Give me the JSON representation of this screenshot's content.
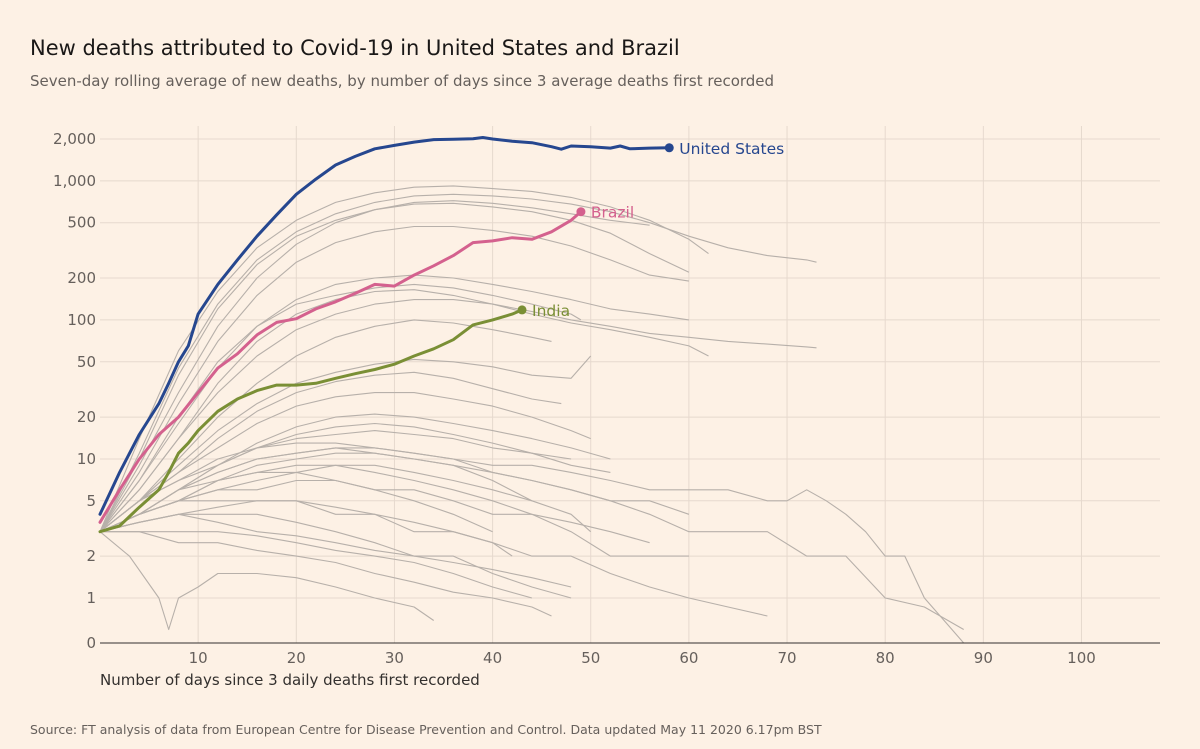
{
  "title": "New deaths attributed to Covid-19 in United States and Brazil",
  "subtitle": "Seven-day rolling average of new deaths, by number of days since 3 average deaths first recorded",
  "source": "Source: FT analysis of data from European Centre for Disease Prevention and Control. Data updated May 11 2020 6.17pm BST",
  "colors": {
    "background": "#fdf1e5",
    "grid": "#e6d9ce",
    "axis": "#66605c",
    "context": "#b7b0aa",
    "united_states": "#26478f",
    "brazil": "#d4618e",
    "india": "#7a8f35"
  },
  "chart_data": {
    "type": "line",
    "xlabel": "Number of days since 3 daily deaths first recorded",
    "ylabel": "",
    "y_scale": "log",
    "xlim": [
      0,
      108
    ],
    "x_ticks": [
      10,
      20,
      30,
      40,
      50,
      60,
      70,
      80,
      90,
      100
    ],
    "y_ticks": [
      {
        "value": 0,
        "label": "0"
      },
      {
        "value": 1,
        "label": "1"
      },
      {
        "value": 2,
        "label": "2"
      },
      {
        "value": 5,
        "label": "5"
      },
      {
        "value": 10,
        "label": "10"
      },
      {
        "value": 20,
        "label": "20"
      },
      {
        "value": 50,
        "label": "50"
      },
      {
        "value": 100,
        "label": "100"
      },
      {
        "value": 200,
        "label": "200"
      },
      {
        "value": 500,
        "label": "500"
      },
      {
        "value": 1000,
        "label": "1,000"
      },
      {
        "value": 2000,
        "label": "2,000"
      }
    ],
    "grid": true,
    "highlighted_series": [
      {
        "name": "United States",
        "label": "United States",
        "color_key": "united_states",
        "x": [
          0,
          2,
          4,
          6,
          7,
          8,
          9,
          10,
          12,
          14,
          16,
          18,
          20,
          22,
          24,
          26,
          28,
          30,
          32,
          34,
          36,
          38,
          39,
          40,
          42,
          44,
          46,
          47,
          48,
          50,
          52,
          53,
          54,
          56,
          58
        ],
        "y": [
          4,
          8,
          15,
          25,
          35,
          50,
          65,
          110,
          180,
          270,
          400,
          570,
          800,
          1030,
          1300,
          1500,
          1700,
          1800,
          1900,
          1980,
          1990,
          2010,
          2050,
          2000,
          1930,
          1880,
          1760,
          1690,
          1780,
          1760,
          1720,
          1780,
          1700,
          1720,
          1730
        ]
      },
      {
        "name": "Brazil",
        "label": "Brazil",
        "color_key": "brazil",
        "x": [
          0,
          2,
          4,
          6,
          8,
          10,
          12,
          14,
          16,
          18,
          20,
          22,
          24,
          26,
          28,
          30,
          32,
          34,
          36,
          38,
          40,
          42,
          44,
          46,
          48,
          49
        ],
        "y": [
          3.5,
          6,
          10,
          15,
          20,
          30,
          45,
          57,
          78,
          96,
          102,
          120,
          135,
          155,
          180,
          175,
          210,
          245,
          290,
          360,
          370,
          390,
          380,
          430,
          520,
          600
        ]
      },
      {
        "name": "India",
        "label": "India",
        "color_key": "india",
        "x": [
          0,
          2,
          4,
          6,
          7,
          8,
          9,
          10,
          12,
          14,
          16,
          18,
          20,
          22,
          24,
          26,
          28,
          30,
          32,
          34,
          36,
          38,
          40,
          42,
          43
        ],
        "y": [
          3,
          3.3,
          4.5,
          6,
          8,
          11,
          13,
          16,
          22,
          27,
          31,
          34,
          34,
          35,
          38,
          41,
          44,
          48,
          55,
          62,
          72,
          92,
          100,
          110,
          118
        ]
      }
    ],
    "context_series": [
      {
        "x": [
          0,
          4,
          8,
          12,
          16,
          20,
          24,
          28,
          32,
          36,
          40,
          44,
          48,
          52,
          56,
          60,
          62
        ],
        "y": [
          3,
          14,
          60,
          160,
          330,
          520,
          700,
          820,
          900,
          920,
          880,
          840,
          760,
          650,
          520,
          380,
          300
        ]
      },
      {
        "x": [
          0,
          4,
          8,
          12,
          16,
          20,
          24,
          28,
          32,
          36,
          40,
          44,
          48,
          52,
          56,
          60,
          64,
          68,
          72,
          73
        ],
        "y": [
          3,
          11,
          45,
          130,
          270,
          430,
          580,
          700,
          780,
          800,
          780,
          740,
          680,
          600,
          500,
          400,
          330,
          290,
          270,
          260
        ]
      },
      {
        "x": [
          0,
          4,
          8,
          12,
          16,
          20,
          24,
          28,
          32,
          36,
          40,
          44,
          48,
          52,
          56
        ],
        "y": [
          3,
          9,
          30,
          90,
          200,
          350,
          500,
          620,
          700,
          720,
          690,
          640,
          580,
          520,
          480
        ]
      },
      {
        "x": [
          0,
          4,
          8,
          12,
          16,
          20,
          24,
          28,
          32,
          36,
          40,
          44,
          48,
          52,
          56,
          60
        ],
        "y": [
          3,
          10,
          40,
          120,
          250,
          400,
          520,
          620,
          680,
          690,
          650,
          600,
          520,
          420,
          300,
          220
        ]
      },
      {
        "x": [
          0,
          4,
          8,
          12,
          16,
          20,
          24,
          28,
          32,
          36,
          40,
          44,
          48,
          52,
          56,
          60
        ],
        "y": [
          3,
          8,
          25,
          70,
          150,
          260,
          360,
          430,
          470,
          470,
          440,
          400,
          340,
          270,
          210,
          190
        ]
      },
      {
        "x": [
          0,
          4,
          8,
          12,
          16,
          20,
          24,
          28,
          32,
          36,
          40,
          44,
          48,
          52,
          56,
          60
        ],
        "y": [
          3,
          7,
          18,
          45,
          90,
          140,
          180,
          200,
          210,
          200,
          180,
          160,
          140,
          120,
          110,
          100
        ]
      },
      {
        "x": [
          0,
          4,
          8,
          12,
          16,
          20,
          24,
          28,
          32,
          36,
          40,
          44,
          48,
          52,
          56,
          60,
          64,
          68,
          72,
          73
        ],
        "y": [
          3,
          6,
          14,
          30,
          55,
          85,
          110,
          130,
          140,
          140,
          130,
          115,
          100,
          90,
          80,
          75,
          70,
          67,
          64,
          63
        ]
      },
      {
        "x": [
          0,
          4,
          8,
          12,
          16,
          20,
          24,
          28,
          32,
          36,
          40,
          44,
          48,
          52,
          56,
          60,
          62
        ],
        "y": [
          3,
          6,
          14,
          35,
          70,
          110,
          140,
          160,
          165,
          150,
          130,
          110,
          95,
          85,
          75,
          65,
          55
        ]
      },
      {
        "x": [
          0,
          4,
          8,
          12,
          16,
          20,
          24,
          28,
          32,
          36,
          40,
          44,
          48,
          49
        ],
        "y": [
          3,
          7,
          20,
          50,
          90,
          130,
          150,
          170,
          180,
          170,
          150,
          130,
          110,
          100
        ]
      },
      {
        "x": [
          0,
          4,
          8,
          12,
          16,
          20,
          24,
          28,
          32,
          36,
          40,
          44,
          46
        ],
        "y": [
          3,
          5,
          10,
          20,
          35,
          55,
          75,
          90,
          100,
          95,
          85,
          75,
          70
        ]
      },
      {
        "x": [
          0,
          4,
          8,
          12,
          16,
          20,
          24,
          28,
          32,
          36,
          40,
          44,
          48,
          50
        ],
        "y": [
          3,
          5,
          9,
          16,
          25,
          35,
          42,
          48,
          52,
          50,
          46,
          40,
          38,
          55
        ]
      },
      {
        "x": [
          0,
          4,
          8,
          12,
          16,
          20,
          24,
          28,
          32,
          36,
          40,
          44,
          47
        ],
        "y": [
          3,
          5,
          8,
          14,
          22,
          30,
          36,
          40,
          42,
          38,
          32,
          27,
          25
        ]
      },
      {
        "x": [
          0,
          4,
          8,
          12,
          16,
          20,
          24,
          28,
          32,
          36,
          40,
          44,
          48,
          50
        ],
        "y": [
          3,
          5,
          8,
          12,
          18,
          24,
          28,
          30,
          30,
          27,
          24,
          20,
          16,
          14
        ]
      },
      {
        "x": [
          0,
          4,
          8,
          12,
          16,
          20,
          24,
          28,
          32,
          36,
          40,
          44,
          48,
          52
        ],
        "y": [
          3,
          4,
          6,
          9,
          12,
          15,
          17,
          18,
          17,
          15,
          13,
          11,
          9,
          8
        ]
      },
      {
        "x": [
          0,
          4,
          8,
          12,
          16,
          20,
          24,
          28,
          32,
          36,
          40,
          44,
          48,
          52,
          56,
          60,
          64,
          68,
          70,
          72,
          74,
          76,
          78,
          80,
          82,
          84,
          86,
          88,
          90
        ],
        "y": [
          3,
          4,
          6,
          8,
          10,
          11,
          12,
          12,
          11,
          10,
          9,
          9,
          8,
          7,
          6,
          6,
          6,
          5,
          5,
          6,
          5,
          4,
          3,
          2,
          2,
          1,
          0.5,
          0,
          0
        ]
      },
      {
        "x": [
          0,
          4,
          8,
          12,
          16,
          20,
          24,
          28,
          32,
          36,
          40,
          44,
          48,
          52,
          56,
          60,
          64,
          68,
          72,
          76,
          80,
          84,
          88
        ],
        "y": [
          3,
          4,
          5,
          7,
          9,
          10,
          11,
          11,
          10,
          9,
          8,
          7,
          6,
          5,
          4,
          3,
          3,
          3,
          2,
          2,
          1,
          0.8,
          0.3
        ]
      },
      {
        "x": [
          0,
          4,
          8,
          12,
          16,
          20,
          24,
          28,
          32,
          36,
          40,
          44,
          48,
          50
        ],
        "y": [
          3,
          4,
          5,
          6,
          7,
          8,
          9,
          9,
          8,
          7,
          6,
          5,
          4,
          3
        ]
      },
      {
        "x": [
          0,
          4,
          8,
          12,
          16,
          20,
          24,
          28,
          32,
          36,
          40,
          44,
          48,
          52,
          56,
          60
        ],
        "y": [
          3,
          4,
          5,
          6,
          6,
          7,
          7,
          6,
          6,
          5,
          4,
          4,
          3,
          2,
          2,
          2
        ]
      },
      {
        "x": [
          0,
          4,
          8,
          12,
          16,
          20,
          24,
          28,
          32,
          36,
          40,
          44,
          48,
          52,
          56,
          60,
          64,
          68
        ],
        "y": [
          3,
          3.5,
          4,
          4.5,
          5,
          5,
          4.5,
          4,
          3.5,
          3,
          2.5,
          2,
          2,
          1.5,
          1.2,
          1,
          0.8,
          0.6
        ]
      },
      {
        "x": [
          0,
          4,
          8,
          12,
          16,
          20,
          24,
          28,
          32,
          36,
          40,
          44,
          48
        ],
        "y": [
          3,
          3.5,
          4,
          4,
          4,
          3.5,
          3,
          2.5,
          2,
          2,
          1.5,
          1.2,
          1
        ]
      },
      {
        "x": [
          0,
          4,
          8,
          12,
          16,
          20,
          24,
          28,
          32,
          36,
          40,
          44
        ],
        "y": [
          3,
          3,
          3,
          3,
          2.8,
          2.5,
          2.2,
          2,
          1.8,
          1.5,
          1.2,
          1
        ]
      },
      {
        "x": [
          0,
          4,
          8,
          12,
          16,
          20,
          24,
          28,
          32,
          36,
          40,
          44,
          46
        ],
        "y": [
          3,
          3,
          2.5,
          2.5,
          2.2,
          2,
          1.8,
          1.5,
          1.3,
          1.1,
          1,
          0.8,
          0.6
        ]
      },
      {
        "x": [
          0,
          3,
          6,
          7,
          8,
          10,
          12,
          16,
          20,
          24,
          28,
          32,
          34
        ],
        "y": [
          3,
          2,
          1,
          0.3,
          1,
          1.2,
          1.5,
          1.5,
          1.4,
          1.2,
          1,
          0.8,
          0.5
        ]
      },
      {
        "x": [
          0,
          4,
          8,
          12,
          16,
          20,
          24,
          28,
          32,
          36,
          40,
          44
        ],
        "y": [
          3,
          4,
          6,
          8,
          10,
          11,
          12,
          11,
          10,
          9,
          7,
          5
        ]
      },
      {
        "x": [
          0,
          4,
          8,
          12,
          16,
          20,
          24,
          28,
          32,
          36,
          40,
          44,
          48
        ],
        "y": [
          3,
          5,
          7,
          9,
          12,
          14,
          15,
          16,
          15,
          14,
          12,
          11,
          10
        ]
      },
      {
        "x": [
          0,
          4,
          8,
          12,
          16,
          20,
          24,
          28,
          32,
          36,
          40,
          44,
          48,
          52
        ],
        "y": [
          3,
          4,
          6,
          9,
          13,
          17,
          20,
          21,
          20,
          18,
          16,
          14,
          12,
          10
        ]
      },
      {
        "x": [
          0,
          4,
          8,
          12,
          16,
          20,
          24,
          28,
          32,
          36,
          40,
          42
        ],
        "y": [
          3,
          4,
          5,
          5,
          5,
          5,
          4,
          4,
          3,
          3,
          2.5,
          2
        ]
      },
      {
        "x": [
          0,
          4,
          8,
          12,
          16,
          20,
          24,
          28,
          32,
          36,
          40,
          44,
          48
        ],
        "y": [
          3,
          3.5,
          4,
          3.5,
          3,
          2.8,
          2.5,
          2.2,
          2,
          1.8,
          1.6,
          1.4,
          1.2
        ]
      },
      {
        "x": [
          0,
          4,
          8,
          12,
          16,
          20,
          24,
          28,
          32,
          36,
          40,
          44,
          48,
          52,
          56,
          60
        ],
        "y": [
          3,
          5,
          7,
          10,
          12,
          13,
          13,
          12,
          11,
          10,
          8,
          7,
          6,
          5,
          5,
          4
        ]
      },
      {
        "x": [
          0,
          4,
          8,
          12,
          16,
          20,
          24,
          28,
          32,
          36,
          40
        ],
        "y": [
          3,
          4,
          6,
          7,
          8,
          8,
          7,
          6,
          5,
          4,
          3
        ]
      },
      {
        "x": [
          0,
          4,
          8,
          12,
          16,
          20,
          24,
          28,
          32,
          36,
          40,
          44,
          48,
          52,
          56
        ],
        "y": [
          3,
          4,
          5,
          7,
          8,
          9,
          9,
          8,
          7,
          6,
          5,
          4,
          3.5,
          3,
          2.5
        ]
      }
    ]
  }
}
